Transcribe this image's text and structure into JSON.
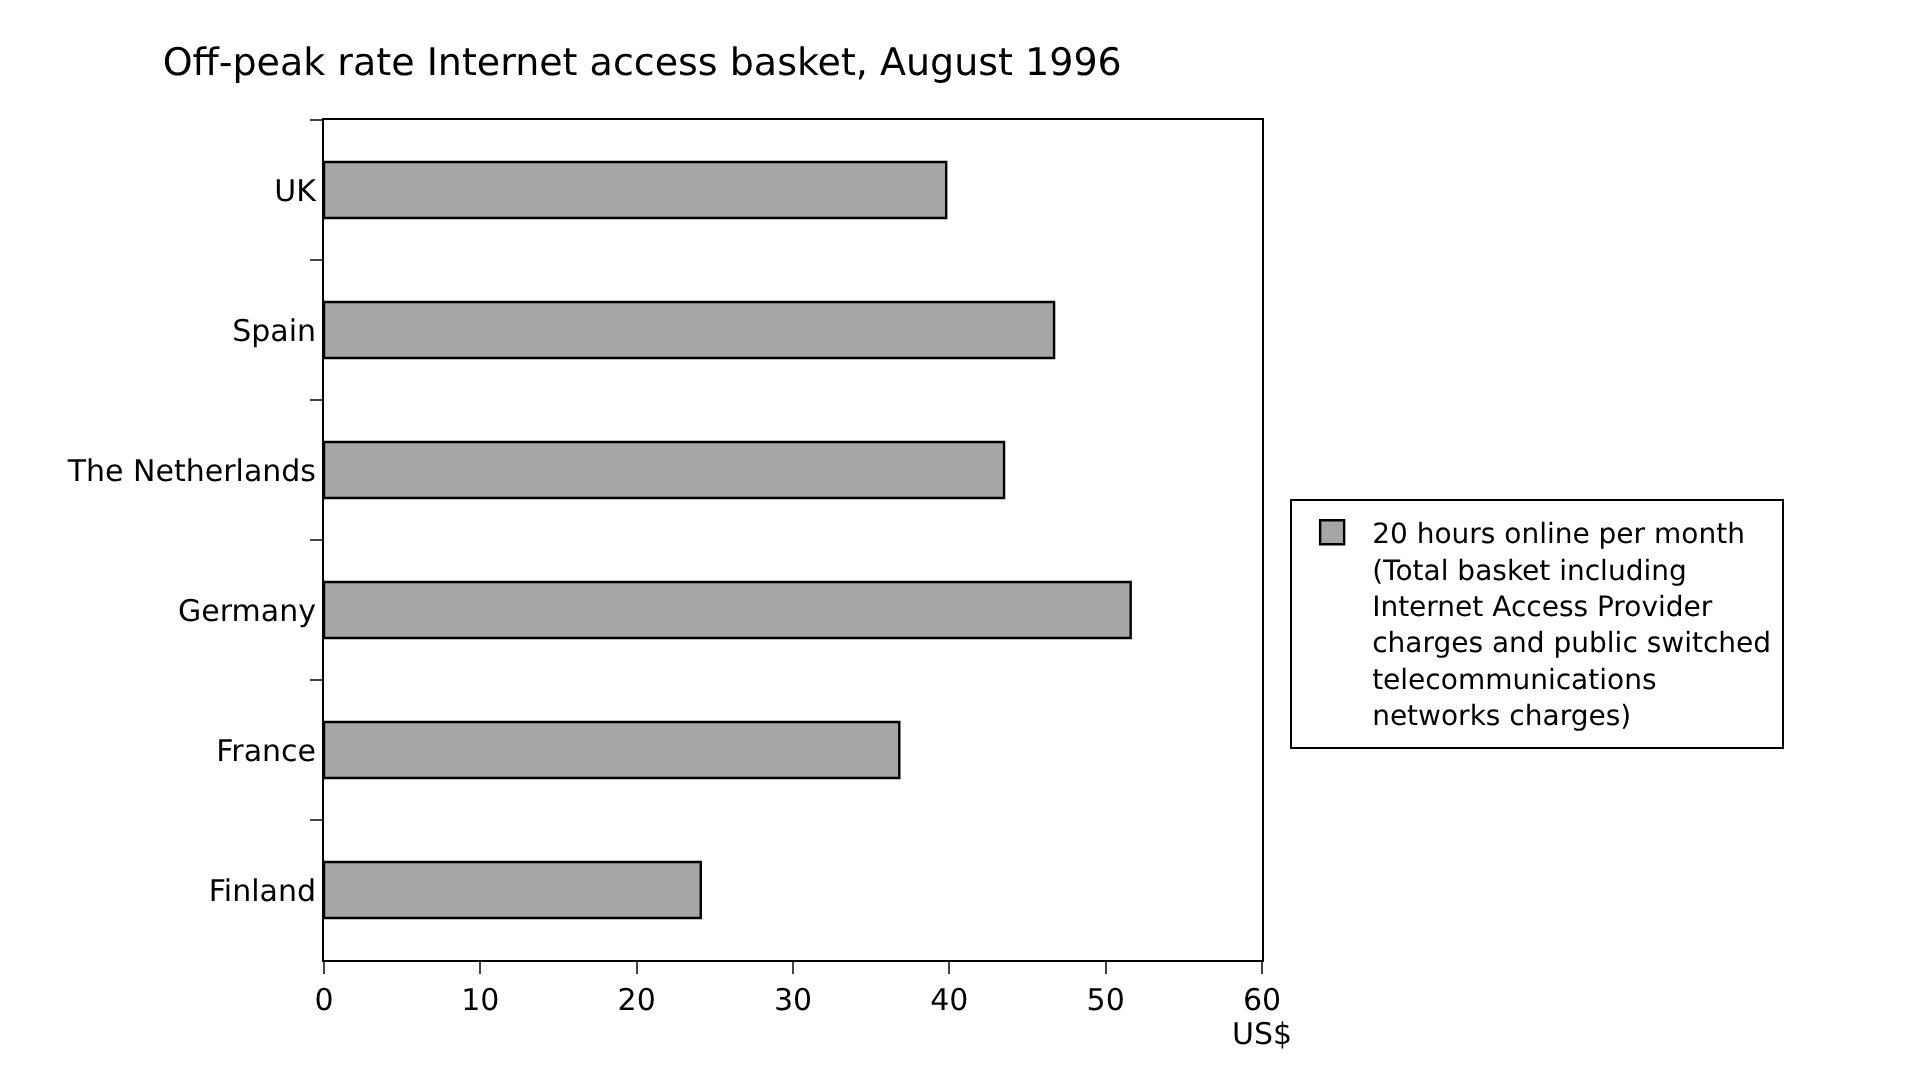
{
  "chart_data": {
    "type": "bar",
    "orientation": "horizontal",
    "title": "Off-peak rate Internet access basket, August 1996",
    "xlabel": "US$",
    "categories": [
      "UK",
      "Spain",
      "The Netherlands",
      "Germany",
      "France",
      "Finland"
    ],
    "series": [
      {
        "name": "20 hours online per month\n(Total basket including\nInternet Access Provider\ncharges and public switched\ntelecommunications\nnetworks charges)",
        "color": "#a6a6a6",
        "values": [
          39.8,
          46.7,
          43.5,
          51.6,
          36.8,
          24.1
        ]
      }
    ],
    "xlim": [
      0,
      60
    ],
    "xticks": [
      0,
      10,
      20,
      30,
      40,
      50,
      60
    ],
    "legend": "right"
  }
}
